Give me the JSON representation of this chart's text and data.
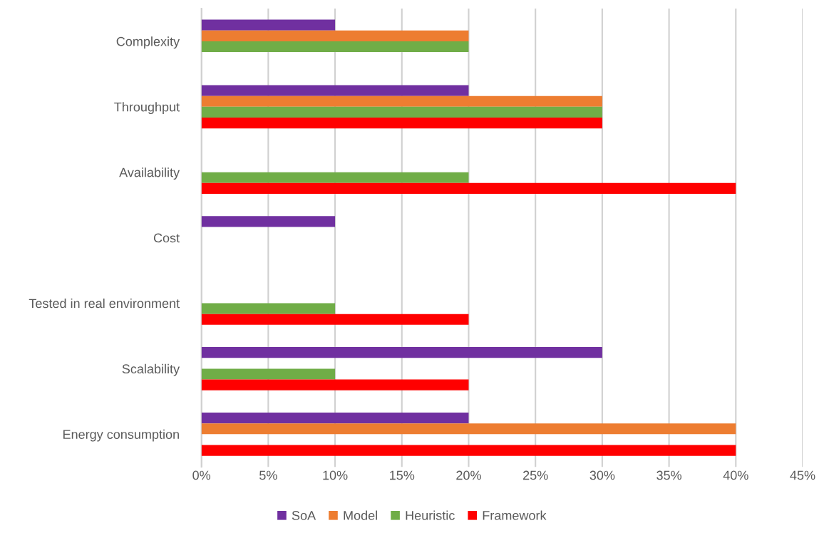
{
  "chart_data": {
    "type": "bar",
    "orientation": "horizontal",
    "categories": [
      "Complexity",
      "Throughput",
      "Availability",
      "Cost",
      "Tested in real environment",
      "Scalability",
      "Energy consumption"
    ],
    "series": [
      {
        "name": "SoA",
        "color": "#7030a0",
        "values": [
          10,
          20,
          null,
          10,
          null,
          30,
          20
        ]
      },
      {
        "name": "Model",
        "color": "#ed7d31",
        "values": [
          20,
          30,
          null,
          null,
          null,
          null,
          40
        ]
      },
      {
        "name": "Heuristic",
        "color": "#70ad47",
        "values": [
          20,
          30,
          20,
          null,
          10,
          10,
          null
        ]
      },
      {
        "name": "Framework",
        "color": "#ff0000",
        "values": [
          null,
          30,
          40,
          null,
          20,
          20,
          40
        ]
      }
    ],
    "xlim": [
      0,
      45
    ],
    "xticks": [
      {
        "value": 0,
        "label": "0%"
      },
      {
        "value": 5,
        "label": "5%"
      },
      {
        "value": 10,
        "label": "10%"
      },
      {
        "value": 15,
        "label": "15%"
      },
      {
        "value": 20,
        "label": "20%"
      },
      {
        "value": 25,
        "label": "25%"
      },
      {
        "value": 30,
        "label": "30%"
      },
      {
        "value": 35,
        "label": "35%"
      },
      {
        "value": 40,
        "label": "40%"
      },
      {
        "value": 45,
        "label": "45%"
      }
    ],
    "grid": "x",
    "legend": "bottom"
  }
}
